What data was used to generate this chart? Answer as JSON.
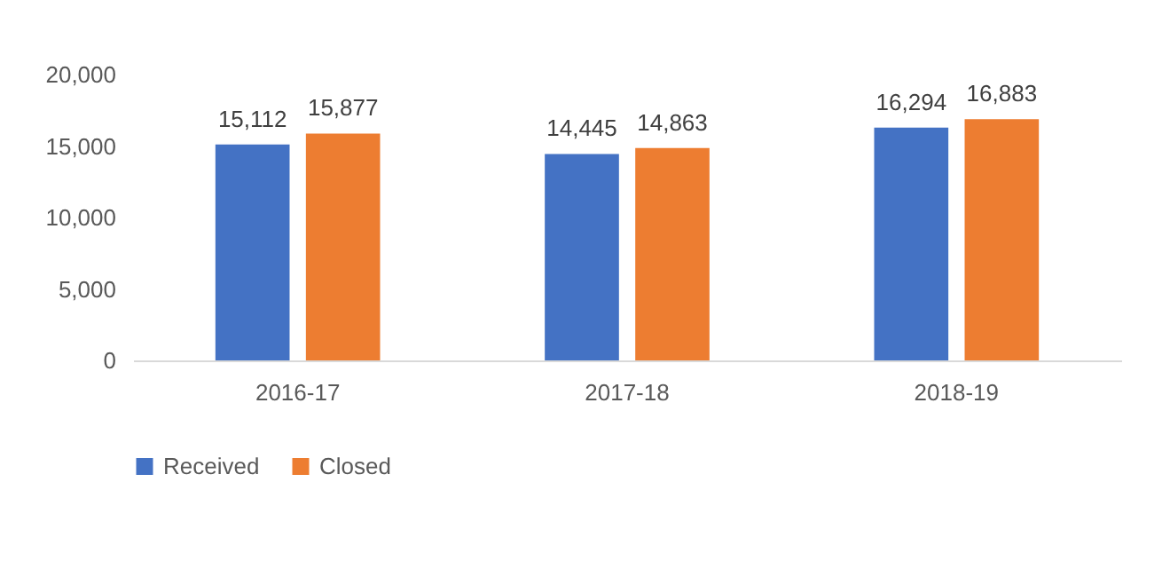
{
  "chart_data": {
    "type": "bar",
    "categories": [
      "2016-17",
      "2017-18",
      "2018-19"
    ],
    "series": [
      {
        "name": "Received",
        "color": "#4472c4",
        "values": [
          15112,
          14445,
          16294
        ],
        "value_labels": [
          "15,112",
          "14,445",
          "16,294"
        ]
      },
      {
        "name": "Closed",
        "color": "#ed7d31",
        "values": [
          15877,
          14863,
          16883
        ],
        "value_labels": [
          "15,877",
          "14,863",
          "16,883"
        ]
      }
    ],
    "ylim": [
      0,
      20000
    ],
    "yticks": [
      0,
      {
        "value": 5000,
        "label": "5,000"
      },
      {
        "value": 10000,
        "label": "10,000"
      },
      {
        "value": 15000,
        "label": "15,000"
      },
      {
        "value": 20000,
        "label": "20,000"
      }
    ],
    "legend": "bottom"
  }
}
